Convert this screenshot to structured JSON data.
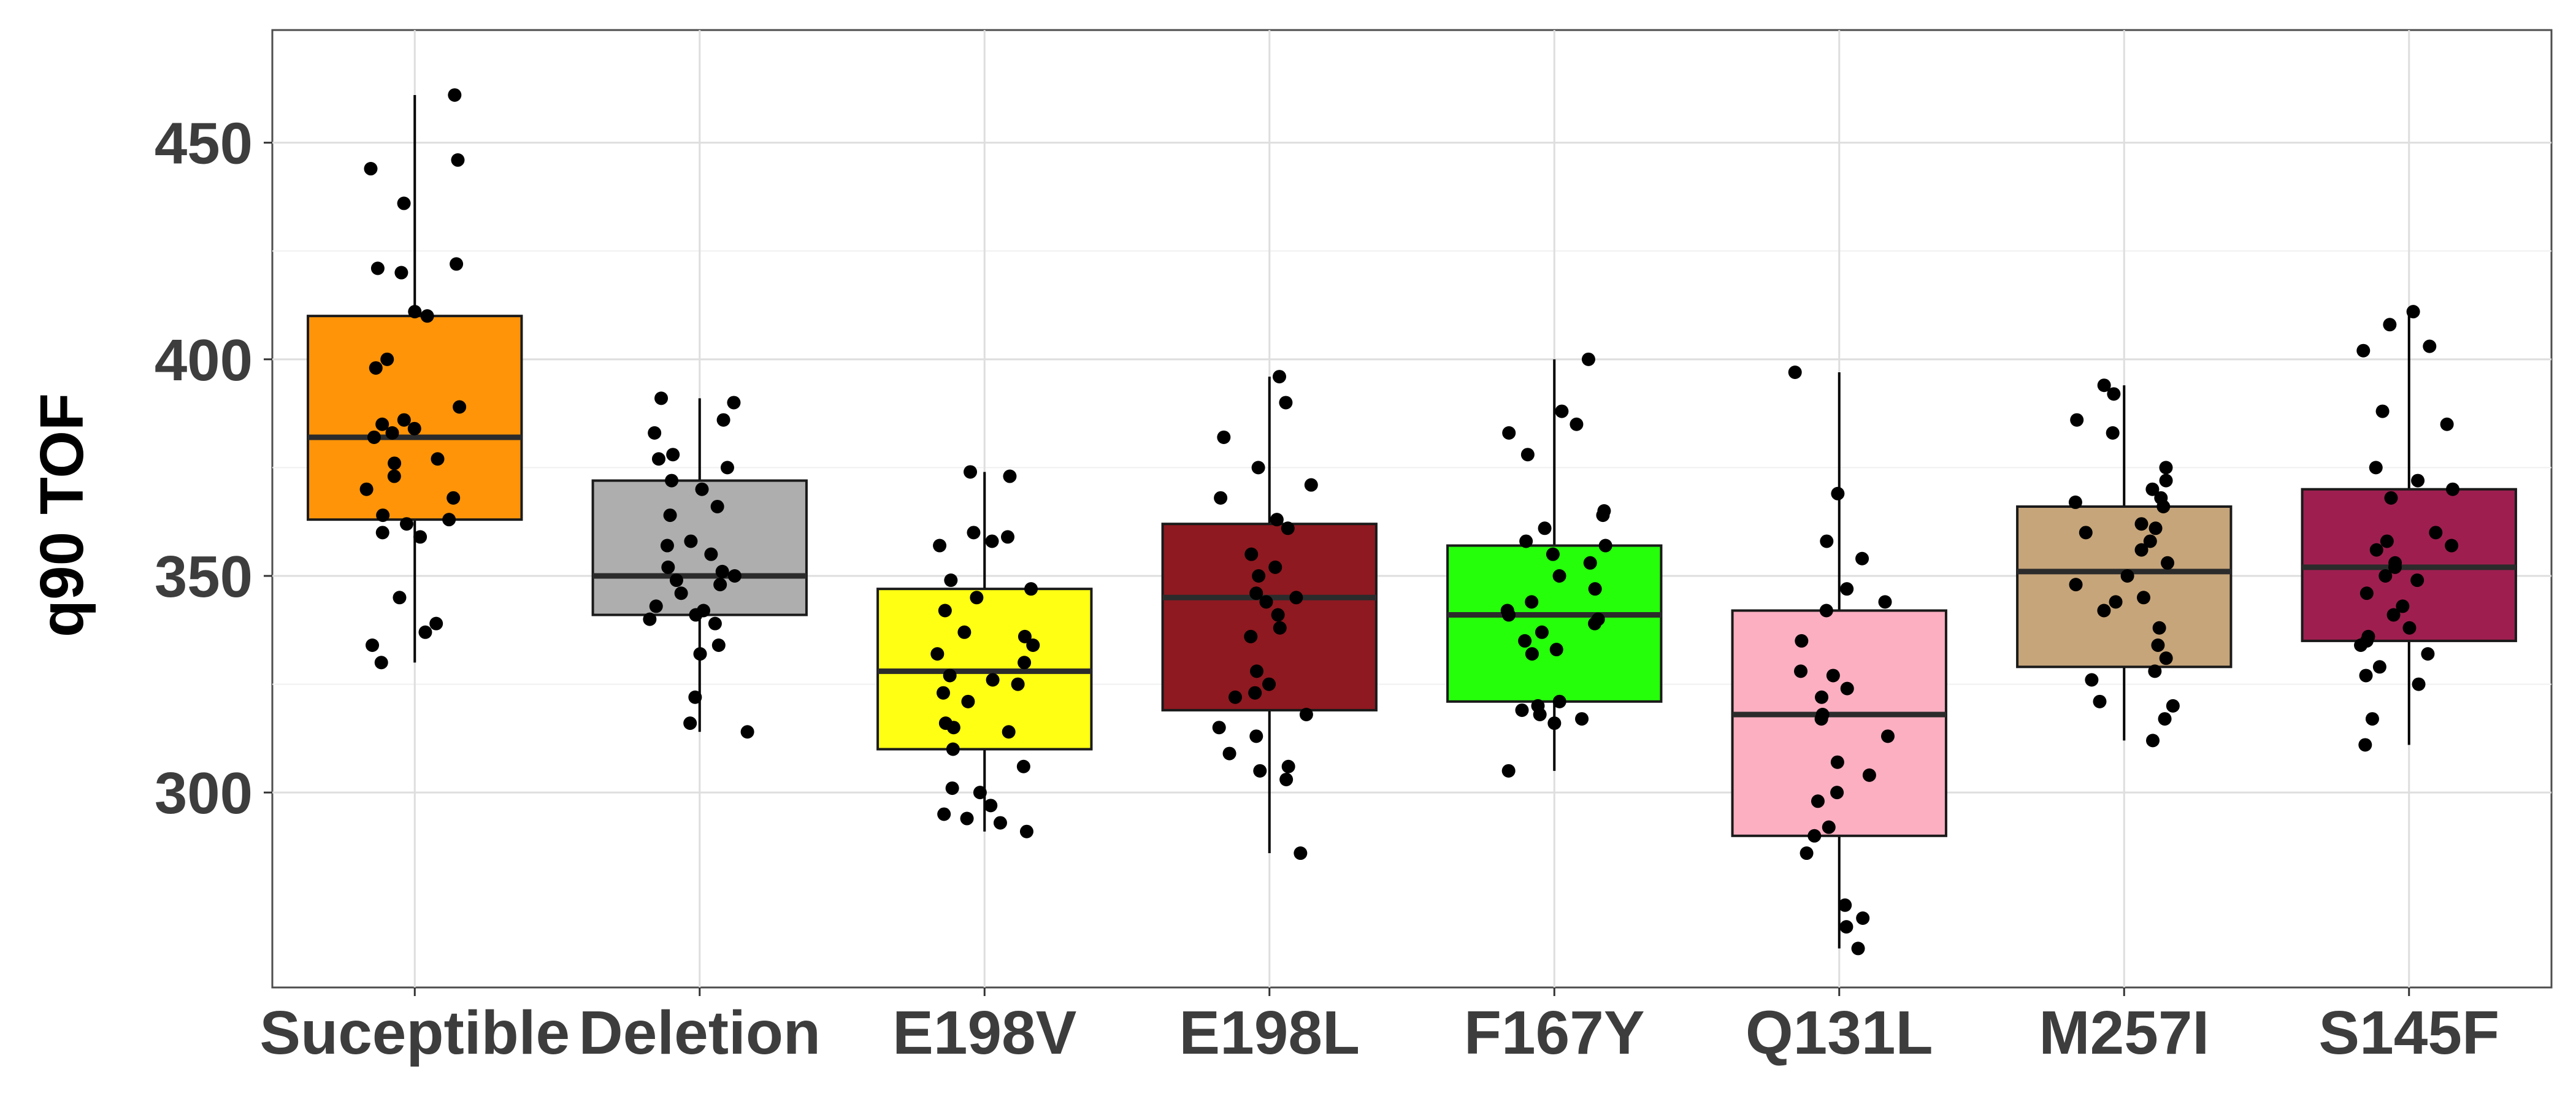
{
  "chart_data": {
    "type": "box",
    "title": "",
    "xlabel": "",
    "ylabel": "q90 TOF",
    "ylim": [
      255,
      476
    ],
    "yticks": [
      300,
      350,
      400,
      450
    ],
    "grid": true,
    "legend": "none",
    "categories": [
      "Suceptible",
      "Deletion",
      "E198V",
      "E198L",
      "F167Y",
      "Q131L",
      "M257I",
      "S145F"
    ],
    "colors": [
      "#FF9408",
      "#AEAEAE",
      "#FFFF14",
      "#8E1920",
      "#26FF0A",
      "#FBAFC1",
      "#C6A57A",
      "#9E1F4F"
    ],
    "boxes": [
      {
        "name": "Suceptible",
        "whisker_low": 330,
        "q1": 363,
        "median": 382,
        "q3": 410,
        "whisker_high": 461,
        "points": [
          461,
          446,
          444,
          436,
          422,
          421,
          420,
          411,
          410,
          400,
          398,
          389,
          386,
          385,
          384,
          383,
          382,
          377,
          376,
          373,
          370,
          368,
          364,
          363,
          362,
          360,
          359,
          345,
          339,
          337,
          334,
          330
        ]
      },
      {
        "name": "Deletion",
        "whisker_low": 314,
        "q1": 341,
        "median": 350,
        "q3": 372,
        "whisker_high": 391,
        "points": [
          391,
          390,
          386,
          383,
          378,
          377,
          375,
          372,
          370,
          366,
          364,
          358,
          357,
          355,
          352,
          351,
          350,
          349,
          348,
          346,
          343,
          342,
          341,
          340,
          339,
          334,
          332,
          322,
          316,
          314
        ]
      },
      {
        "name": "E198V",
        "whisker_low": 291,
        "q1": 310,
        "median": 328,
        "q3": 347,
        "whisker_high": 374,
        "points": [
          374,
          373,
          360,
          359,
          358,
          357,
          349,
          347,
          345,
          342,
          337,
          336,
          334,
          332,
          330,
          327,
          326,
          325,
          323,
          321,
          316,
          315,
          314,
          310,
          306,
          301,
          300,
          297,
          295,
          294,
          293,
          291
        ]
      },
      {
        "name": "E198L",
        "whisker_low": 286,
        "q1": 319,
        "median": 345,
        "q3": 362,
        "whisker_high": 396,
        "points": [
          396,
          390,
          382,
          375,
          371,
          368,
          363,
          361,
          355,
          352,
          350,
          346,
          345,
          344,
          341,
          338,
          336,
          328,
          325,
          323,
          322,
          318,
          315,
          313,
          309,
          306,
          305,
          303,
          286
        ]
      },
      {
        "name": "F167Y",
        "whisker_low": 305,
        "q1": 321,
        "median": 341,
        "q3": 357,
        "whisker_high": 400,
        "points": [
          400,
          388,
          385,
          383,
          378,
          365,
          364,
          361,
          358,
          357,
          355,
          353,
          350,
          347,
          344,
          342,
          341,
          340,
          339,
          337,
          335,
          333,
          332,
          321,
          320,
          319,
          318,
          317,
          316,
          305
        ]
      },
      {
        "name": "Q131L",
        "whisker_low": 264,
        "q1": 290,
        "median": 318,
        "q3": 342,
        "whisker_high": 397,
        "points": [
          397,
          369,
          358,
          354,
          347,
          344,
          342,
          335,
          328,
          327,
          324,
          322,
          318,
          317,
          313,
          307,
          304,
          300,
          298,
          292,
          290,
          286,
          274,
          271,
          269,
          264
        ]
      },
      {
        "name": "M257I",
        "whisker_low": 312,
        "q1": 329,
        "median": 351,
        "q3": 366,
        "whisker_high": 394,
        "points": [
          394,
          392,
          386,
          383,
          375,
          372,
          370,
          368,
          367,
          366,
          362,
          361,
          360,
          358,
          356,
          353,
          350,
          348,
          345,
          344,
          342,
          338,
          334,
          331,
          328,
          326,
          321,
          320,
          317,
          312
        ]
      },
      {
        "name": "S145F",
        "whisker_low": 311,
        "q1": 335,
        "median": 352,
        "q3": 370,
        "whisker_high": 411,
        "points": [
          411,
          408,
          403,
          402,
          388,
          385,
          375,
          372,
          370,
          368,
          360,
          358,
          357,
          356,
          353,
          352,
          350,
          349,
          346,
          343,
          341,
          338,
          336,
          335,
          334,
          332,
          329,
          327,
          325,
          317,
          311
        ]
      }
    ]
  }
}
